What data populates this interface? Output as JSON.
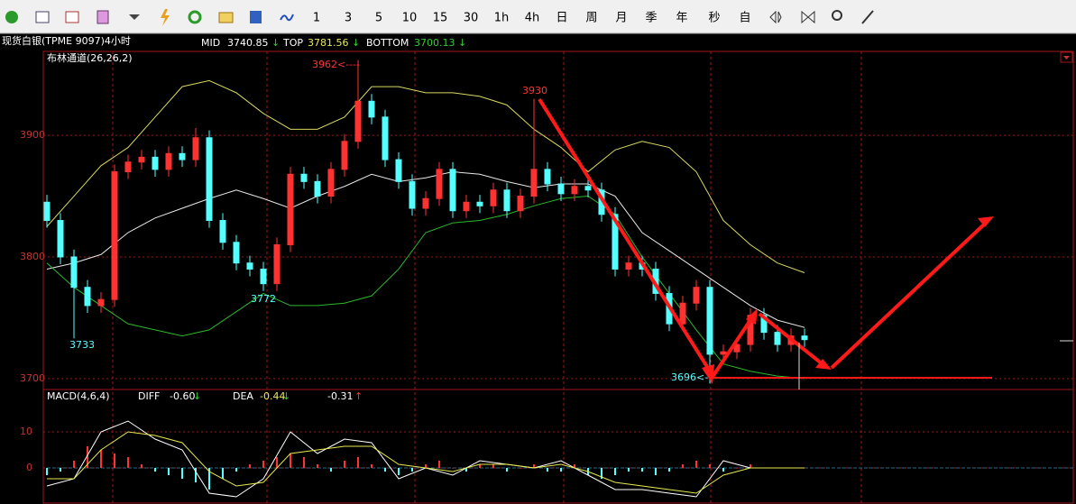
{
  "toolbar": {
    "buttons": [
      "1",
      "3",
      "5",
      "10",
      "15",
      "30",
      "1h",
      "4h",
      "日",
      "周",
      "月",
      "季",
      "年",
      "秒",
      "自"
    ]
  },
  "header": {
    "symbol": "现货白银(TPME 9097)4小时",
    "mid": 3740.85,
    "top": 3781.56,
    "bottom": 3700.13,
    "arrow": "↓"
  },
  "annotations": [
    "3962<----",
    "3930",
    "3772",
    "3733",
    "3696<----"
  ],
  "chart_data": [
    {
      "type": "candlestick",
      "title": "布林通道(26,26,2)",
      "ylim": [
        3691,
        3969
      ],
      "yticks": [
        3700,
        3800,
        3900
      ],
      "grid": true,
      "up_color": "#ff3232",
      "down_color": "#54ffff",
      "candles": {
        "open": [
          3845,
          3830,
          3800,
          3775,
          3760,
          3765,
          3870,
          3878,
          3882,
          3872,
          3885,
          3880,
          3898,
          3830,
          3812,
          3795,
          3790,
          3778,
          3810,
          3868,
          3862,
          3850,
          3872,
          3895,
          3928,
          3915,
          3880,
          3862,
          3840,
          3848,
          3872,
          3838,
          3845,
          3842,
          3855,
          3838,
          3850,
          3872,
          3860,
          3852,
          3858,
          3855,
          3835,
          3790,
          3795,
          3790,
          3770,
          3745,
          3762,
          3775,
          3720,
          3722,
          3728,
          3752,
          3738,
          3728,
          3735
        ],
        "high": [
          3851,
          3836,
          3806,
          3781,
          3771,
          3876,
          3884,
          3888,
          3888,
          3891,
          3891,
          3906,
          3904,
          3836,
          3818,
          3801,
          3796,
          3816,
          3874,
          3874,
          3868,
          3878,
          3901,
          3962,
          3934,
          3921,
          3886,
          3868,
          3854,
          3878,
          3878,
          3851,
          3851,
          3861,
          3861,
          3856,
          3930,
          3878,
          3866,
          3864,
          3864,
          3861,
          3841,
          3801,
          3801,
          3796,
          3776,
          3768,
          3781,
          3781,
          3728,
          3734,
          3758,
          3758,
          3744,
          3741,
          3741
        ],
        "low": [
          3824,
          3794,
          3733,
          3754,
          3754,
          3759,
          3864,
          3872,
          3866,
          3866,
          3874,
          3874,
          3824,
          3806,
          3789,
          3784,
          3772,
          3772,
          3804,
          3856,
          3844,
          3844,
          3866,
          3889,
          3909,
          3874,
          3856,
          3834,
          3834,
          3842,
          3832,
          3832,
          3836,
          3836,
          3832,
          3832,
          3844,
          3854,
          3846,
          3846,
          3849,
          3829,
          3784,
          3784,
          3784,
          3764,
          3739,
          3739,
          3756,
          3696,
          3714,
          3716,
          3722,
          3732,
          3722,
          3722,
          3726
        ],
        "close": [
          3830,
          3800,
          3775,
          3760,
          3765,
          3870,
          3878,
          3882,
          3872,
          3885,
          3880,
          3898,
          3830,
          3812,
          3795,
          3790,
          3778,
          3810,
          3868,
          3862,
          3850,
          3872,
          3895,
          3928,
          3915,
          3880,
          3862,
          3840,
          3848,
          3872,
          3838,
          3845,
          3842,
          3855,
          3838,
          3850,
          3872,
          3860,
          3852,
          3858,
          3855,
          3835,
          3790,
          3795,
          3790,
          3770,
          3745,
          3762,
          3775,
          3720,
          3722,
          3728,
          3752,
          3738,
          3728,
          3735,
          3732
        ]
      },
      "series": [
        {
          "name": "MID",
          "color": "#e8e8e8",
          "values": [
            3790,
            3795,
            3802,
            3820,
            3832,
            3840,
            3848,
            3855,
            3848,
            3840,
            3850,
            3858,
            3868,
            3862,
            3865,
            3870,
            3868,
            3862,
            3857,
            3860,
            3860,
            3850,
            3820,
            3805,
            3790,
            3775,
            3760,
            3748,
            3742
          ]
        },
        {
          "name": "TOP",
          "color": "#d8d860",
          "values": [
            3825,
            3850,
            3875,
            3890,
            3915,
            3940,
            3945,
            3935,
            3918,
            3905,
            3905,
            3915,
            3940,
            3940,
            3935,
            3935,
            3932,
            3925,
            3905,
            3890,
            3870,
            3888,
            3895,
            3890,
            3870,
            3830,
            3810,
            3795,
            3787
          ]
        },
        {
          "name": "BOTTOM",
          "color": "#2db82d",
          "values": [
            3795,
            3775,
            3760,
            3745,
            3740,
            3735,
            3740,
            3755,
            3770,
            3760,
            3760,
            3762,
            3768,
            3790,
            3820,
            3828,
            3830,
            3835,
            3842,
            3848,
            3850,
            3835,
            3800,
            3770,
            3740,
            3712,
            3706,
            3702,
            3700
          ]
        }
      ]
    },
    {
      "type": "macd",
      "title": "MACD(4,6,4)",
      "ylim": [
        -10,
        21.75
      ],
      "yticks": [
        0,
        10
      ],
      "grid": true,
      "diff_value": "-0.60",
      "dea_value": "-0.44",
      "macd_value": "-0.31",
      "down": "↓",
      "up": "↑",
      "up_color": "#ff3232",
      "down_color": "#54ffff",
      "values": [
        -2,
        -1,
        2,
        6,
        5,
        4,
        3,
        1,
        -1,
        -2,
        -3,
        -4,
        -6,
        -3,
        -1,
        1,
        2,
        3,
        4,
        3,
        1,
        -1,
        2,
        3,
        1,
        -1,
        -2,
        -1,
        1,
        2,
        0,
        -1,
        1,
        1,
        -1,
        0,
        1,
        -1,
        -1,
        1,
        -2,
        -3,
        -2,
        -1,
        -1,
        -2,
        -1,
        1,
        2,
        1,
        -1,
        0,
        1,
        0,
        0,
        0,
        0
      ],
      "series": [
        {
          "name": "DIFF",
          "color": "#ffffff",
          "values": [
            -5,
            -3,
            10,
            13,
            8,
            5,
            -7,
            -8,
            -3,
            10,
            4,
            8,
            7,
            -3,
            0,
            -2,
            2,
            1,
            0,
            2,
            -2,
            -6,
            -6,
            -7,
            -8,
            2,
            0,
            0,
            0
          ]
        },
        {
          "name": "DEA",
          "color": "#e8e850",
          "values": [
            -3,
            -3,
            5,
            10,
            9,
            7,
            -1,
            -5,
            -4,
            4,
            5,
            6,
            6,
            1,
            0,
            -1,
            1,
            1,
            0,
            1,
            -1,
            -4,
            -5,
            -6,
            -7,
            -2,
            0,
            0,
            0
          ]
        }
      ]
    }
  ]
}
